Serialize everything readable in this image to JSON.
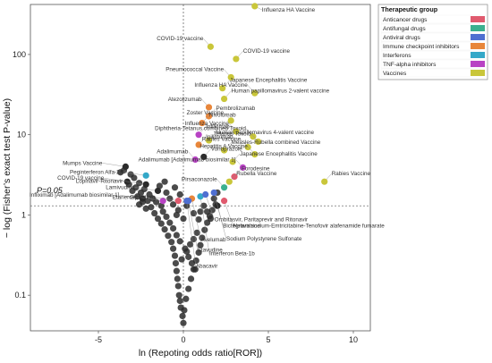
{
  "chart_data": {
    "type": "scatter",
    "xlabel": "ln (Repoting odds ratio[ROR])",
    "ylabel": "− log (Fisher’s exact test P-value)",
    "x_range": [
      -9,
      11
    ],
    "y_range": [
      0.036,
      420
    ],
    "y_scale": "log",
    "x_ticks": [
      {
        "value": -5,
        "label": "-5"
      },
      {
        "value": 0,
        "label": "0"
      },
      {
        "value": 5,
        "label": "5"
      },
      {
        "value": 10,
        "label": "10"
      }
    ],
    "y_ticks": [
      {
        "value": 0.1,
        "label": "0.1"
      },
      {
        "value": 1,
        "label": "1"
      },
      {
        "value": 10,
        "label": "10"
      },
      {
        "value": 100,
        "label": "100"
      }
    ],
    "reference_line": {
      "label": "P=0.05",
      "y": 1.3
    },
    "colors": {
      "Anticancer drugs": "#e05a6e",
      "Antifungal drugs": "#3bb08f",
      "Antiviral drugs": "#4f6fd1",
      "Immune checkpoint inhibitors": "#e8863a",
      "Interferons": "#34a8c8",
      "TNF-alpha inhibitors": "#b843c4",
      "Vaccines": "#c9c63a",
      "Other": "#2b2b2b"
    },
    "legend": {
      "title": "Therapeutic group",
      "placement": "top-right",
      "entries": [
        "Anticancer drugs",
        "Antifungal drugs",
        "Antiviral drugs",
        "Immune checkpoint inhibitors",
        "Interferons",
        "TNF-alpha inhibitors",
        "Vaccines"
      ]
    },
    "labeled_points": [
      {
        "label": "Influenza HA Vaccine",
        "x": 4.2,
        "y": 400,
        "group": "Vaccines"
      },
      {
        "label": "COVID-19 vaccine",
        "x": 1.6,
        "y": 125,
        "group": "Vaccines"
      },
      {
        "label": "COVID-19 vaccine",
        "x": 3.1,
        "y": 88,
        "group": "Vaccines"
      },
      {
        "label": "Pneumococcal Vaccine",
        "x": 2.8,
        "y": 52,
        "group": "Vaccines"
      },
      {
        "label": "Japanese Encephalitis Vaccine",
        "x": 2.3,
        "y": 38,
        "group": "Vaccines"
      },
      {
        "label": "Influenza HA Vaccine",
        "x": 4.2,
        "y": 33,
        "group": "Vaccines"
      },
      {
        "label": "Human papillomavirus 2-valent vaccine",
        "x": 2.4,
        "y": 28,
        "group": "Vaccines"
      },
      {
        "label": "Atezolizumab",
        "x": 1.5,
        "y": 22,
        "group": "Immune checkpoint inhibitors"
      },
      {
        "label": "Pembrolizumab",
        "x": 1.5,
        "y": 17,
        "group": "Immune checkpoint inhibitors"
      },
      {
        "label": "Zoster Vaccine",
        "x": 2.8,
        "y": 15,
        "group": "Vaccines"
      },
      {
        "label": "Nivolumab",
        "x": 1.1,
        "y": 14,
        "group": "Immune checkpoint inhibitors"
      },
      {
        "label": "Influenza Vaccine",
        "x": 3.1,
        "y": 11,
        "group": "Vaccines"
      },
      {
        "label": "Infliximab",
        "x": 0.9,
        "y": 10,
        "group": "TNF-alpha inhibitors"
      },
      {
        "label": "Diphtheria-Tetanus combined Toxoid",
        "x": 4.1,
        "y": 9.5,
        "group": "Vaccines"
      },
      {
        "label": "Human papillomavirus 4-valent vaccine",
        "x": 1.5,
        "y": 8.5,
        "group": "Vaccines"
      },
      {
        "label": "Tetanus Toxoid",
        "x": 4.4,
        "y": 8.2,
        "group": "Vaccines"
      },
      {
        "label": "Ipilimumab",
        "x": 0.9,
        "y": 7.5,
        "group": "Immune checkpoint inhibitors"
      },
      {
        "label": "Rabies Vaccine",
        "x": 3.8,
        "y": 7,
        "group": "Vaccines"
      },
      {
        "label": "Measles-Rubella combined Vaccine",
        "x": 2.4,
        "y": 6.4,
        "group": "Vaccines"
      },
      {
        "label": "Hepatitis A Vaccine",
        "x": 4.2,
        "y": 5.7,
        "group": "Vaccines"
      },
      {
        "label": "Vonoprazole",
        "x": 1.2,
        "y": 5.3,
        "group": "Other"
      },
      {
        "label": "Adalimumab",
        "x": 0.7,
        "y": 4.9,
        "group": "TNF-alpha inhibitors"
      },
      {
        "label": "Japanese Encephalitis Vaccine",
        "x": 2.9,
        "y": 4.6,
        "group": "Vaccines"
      },
      {
        "label": "Adalimumab [Adalimumab biosimilar 1]",
        "x": 3.5,
        "y": 3.9,
        "group": "TNF-alpha inhibitors"
      },
      {
        "label": "Mumps Vaccine",
        "x": -3.4,
        "y": 4.0,
        "group": "Other"
      },
      {
        "label": "Peginterferon Alfa-2a",
        "x": -2.2,
        "y": 3.1,
        "group": "Interferons"
      },
      {
        "label": "Forodesine",
        "x": 3.0,
        "y": 3.0,
        "group": "Anticancer drugs"
      },
      {
        "label": "COVID-19 vaccine",
        "x": -3.3,
        "y": 2.6,
        "group": "Other"
      },
      {
        "label": "Rubella Vaccine",
        "x": 2.7,
        "y": 2.6,
        "group": "Vaccines"
      },
      {
        "label": "Lopinavir-Ritonavir",
        "x": -2.2,
        "y": 2.4,
        "group": "Other"
      },
      {
        "label": "Rabies Vaccine",
        "x": 8.3,
        "y": 2.6,
        "group": "Vaccines"
      },
      {
        "label": "Pirsaconazole",
        "x": 2.4,
        "y": 2.2,
        "group": "Antifungal drugs"
      },
      {
        "label": "Lamivudine",
        "x": -1.5,
        "y": 2.0,
        "group": "Other"
      },
      {
        "label": "Infliximab [Adalimumab biosimilar 1]",
        "x": -2.4,
        "y": 1.6,
        "group": "Other"
      },
      {
        "label": "Etanercept",
        "x": -1.2,
        "y": 1.5,
        "group": "TNF-alpha inhibitors"
      },
      {
        "label": "Gilteritinib",
        "x": -0.3,
        "y": 1.5,
        "group": "Anticancer drugs"
      },
      {
        "label": "Nelarabine",
        "x": 2.4,
        "y": 1.5,
        "group": "Anticancer drugs"
      },
      {
        "label": "Sodium Polystyrene Sulfonate",
        "x": 2.0,
        "y": 1.3,
        "group": "Other"
      },
      {
        "label": "Avelumab",
        "x": 0.5,
        "y": 1.6,
        "group": "Immune checkpoint inhibitors"
      },
      {
        "label": "Stavudine",
        "x": 0.3,
        "y": 1.5,
        "group": "Antiviral drugs"
      },
      {
        "label": "Interferon Beta-1b",
        "x": 1.0,
        "y": 1.7,
        "group": "Interferons"
      },
      {
        "label": "Abacavir",
        "x": 0.2,
        "y": 1.5,
        "group": "Antiviral drugs"
      },
      {
        "label": "Ombitasvir, Paritaprevir and Ritonavir",
        "x": 1.3,
        "y": 1.8,
        "group": "Antiviral drugs"
      },
      {
        "label": "Bictegravir sodium-Emtricitabine-Tenofovir alafenamide fumarate",
        "x": 1.8,
        "y": 1.9,
        "group": "Antiviral drugs"
      }
    ],
    "unlabeled_points": [
      [
        -3.5,
        3.6
      ],
      [
        -3.1,
        3.2
      ],
      [
        -2.9,
        2.9
      ],
      [
        -2.6,
        2.5
      ],
      [
        -3.7,
        3.4
      ],
      [
        -2.3,
        2.1
      ],
      [
        -2.0,
        1.8
      ],
      [
        -1.8,
        1.6
      ],
      [
        -1.6,
        1.45
      ],
      [
        -1.3,
        1.3
      ],
      [
        -2.8,
        2.2
      ],
      [
        -2.5,
        1.9
      ],
      [
        -2.1,
        1.5
      ],
      [
        -1.9,
        1.25
      ],
      [
        -1.7,
        1.05
      ],
      [
        -1.5,
        0.9
      ],
      [
        -1.3,
        0.78
      ],
      [
        -1.1,
        0.66
      ],
      [
        -0.9,
        0.55
      ],
      [
        -0.7,
        0.46
      ],
      [
        -0.6,
        0.38
      ],
      [
        -0.5,
        0.31
      ],
      [
        -0.45,
        0.25
      ],
      [
        -0.4,
        0.2
      ],
      [
        -0.35,
        0.16
      ],
      [
        -0.3,
        0.13
      ],
      [
        -0.25,
        0.1
      ],
      [
        -0.2,
        0.085
      ],
      [
        -0.15,
        0.07
      ],
      [
        -0.05,
        0.055
      ],
      [
        0.0,
        0.045
      ],
      [
        0.05,
        0.065
      ],
      [
        0.15,
        0.09
      ],
      [
        0.3,
        0.12
      ],
      [
        0.45,
        0.16
      ],
      [
        0.6,
        0.21
      ],
      [
        0.75,
        0.27
      ],
      [
        0.9,
        0.34
      ],
      [
        1.0,
        0.42
      ],
      [
        1.1,
        0.52
      ],
      [
        1.25,
        0.65
      ],
      [
        1.4,
        0.8
      ],
      [
        1.55,
        0.97
      ],
      [
        1.7,
        1.15
      ],
      [
        1.9,
        1.35
      ],
      [
        -1.4,
        2.3
      ],
      [
        -1.0,
        1.9
      ],
      [
        -0.8,
        1.6
      ],
      [
        -0.6,
        1.35
      ],
      [
        -0.3,
        1.15
      ],
      [
        -1.2,
        1.1
      ],
      [
        -1.0,
        0.95
      ],
      [
        -0.8,
        0.8
      ],
      [
        -0.6,
        0.68
      ],
      [
        -0.4,
        0.56
      ],
      [
        -0.2,
        0.47
      ],
      [
        0.1,
        0.38
      ],
      [
        0.3,
        0.3
      ],
      [
        0.5,
        0.25
      ],
      [
        0.7,
        0.21
      ],
      [
        1.2,
        1.3
      ],
      [
        1.4,
        1.1
      ],
      [
        1.6,
        0.9
      ],
      [
        0.8,
        0.6
      ],
      [
        0.6,
        0.5
      ],
      [
        0.4,
        0.43
      ],
      [
        0.2,
        0.35
      ],
      [
        -0.1,
        0.28
      ],
      [
        -2.6,
        1.35
      ],
      [
        -2.2,
        1.2
      ],
      [
        -3.2,
        2.4
      ],
      [
        -3.0,
        2.0
      ],
      [
        -2.7,
        1.7
      ],
      [
        -2.4,
        1.45
      ],
      [
        -1.1,
        2.6
      ],
      [
        -0.5,
        2.2
      ],
      [
        -0.2,
        1.8
      ],
      [
        0.2,
        1.3
      ],
      [
        0.6,
        1.05
      ],
      [
        0.9,
        0.88
      ],
      [
        1.8,
        1.6
      ],
      [
        2.0,
        1.9
      ],
      [
        0.0,
        0.9
      ],
      [
        -0.4,
        1.0
      ],
      [
        1.0,
        1.1
      ]
    ]
  }
}
